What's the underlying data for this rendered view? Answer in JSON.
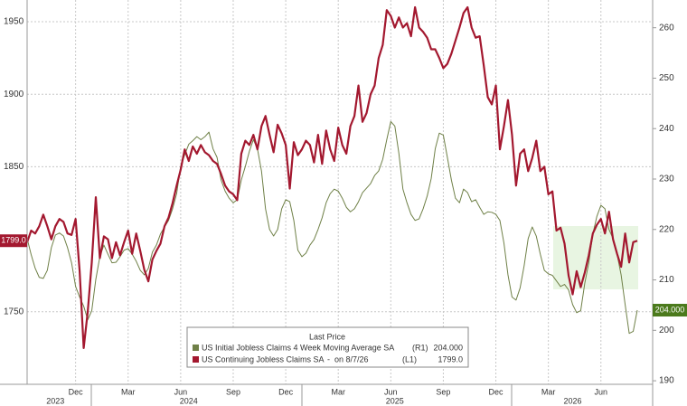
{
  "chart_data": {
    "type": "line",
    "categories": [
      null,
      null,
      null,
      null,
      null,
      null,
      null,
      null,
      null,
      null,
      null,
      null,
      "Dec",
      null,
      null,
      null,
      null,
      null,
      null,
      null,
      null,
      null,
      null,
      null,
      null,
      "Mar",
      null,
      null,
      null,
      null,
      null,
      null,
      null,
      null,
      null,
      null,
      null,
      null,
      "Jun",
      null,
      null,
      null,
      null,
      null,
      null,
      null,
      null,
      null,
      null,
      null,
      null,
      "Sep",
      null,
      null,
      null,
      null,
      null,
      null,
      null,
      null,
      null,
      null,
      null,
      null,
      "Dec",
      null,
      null,
      null,
      null,
      null,
      null,
      null,
      null,
      null,
      null,
      null,
      null,
      "Mar",
      null,
      null,
      null,
      null,
      null,
      null,
      null,
      null,
      null,
      null,
      null,
      null,
      "Jun",
      null,
      null,
      null,
      null,
      null,
      null,
      null,
      null,
      null,
      null,
      null,
      null,
      "Sep",
      null,
      null,
      null,
      null,
      null,
      null,
      null,
      null,
      null,
      null,
      null,
      null,
      "Dec",
      null,
      null,
      null,
      null,
      null,
      null,
      null,
      null,
      null,
      null,
      null,
      null,
      "Mar",
      null,
      null,
      null,
      null,
      null,
      null,
      null,
      null,
      null,
      null,
      null,
      null,
      "Jun",
      null,
      null,
      null,
      null,
      null,
      null,
      null,
      null,
      null
    ],
    "category_years": [
      null,
      null,
      null,
      null,
      null,
      null,
      null,
      "2023",
      null,
      null,
      null,
      null,
      null,
      null,
      null,
      null,
      null,
      null,
      null,
      null,
      null,
      null,
      null,
      null,
      null,
      null,
      null,
      null,
      null,
      null,
      null,
      null,
      null,
      null,
      null,
      null,
      null,
      null,
      null,
      null,
      "2024",
      null,
      null,
      null,
      null,
      null,
      null,
      null,
      null,
      null,
      null,
      null,
      null,
      null,
      null,
      null,
      null,
      null,
      null,
      null,
      null,
      null,
      null,
      null,
      null,
      null,
      null,
      null,
      null,
      null,
      null,
      null,
      null,
      null,
      null,
      null,
      null,
      null,
      null,
      null,
      null,
      null,
      null,
      null,
      null,
      null,
      null,
      null,
      null,
      null,
      null,
      "2025",
      null,
      null,
      null,
      null,
      null,
      null,
      null,
      null,
      null,
      null,
      null,
      null,
      null,
      null,
      null,
      null,
      null,
      null,
      null,
      null,
      null,
      null,
      null,
      null,
      null,
      null,
      null,
      null,
      null,
      null,
      null,
      null,
      null,
      null,
      null,
      null,
      null,
      null,
      null,
      null,
      null,
      null,
      null,
      "2026",
      null,
      null,
      null,
      null,
      null,
      null,
      null,
      null,
      null,
      null,
      null,
      null,
      null,
      null,
      null
    ],
    "legend_title": "Last Price",
    "series": [
      {
        "name": "US Initial Jobless Claims 4 Week Moving Average SA",
        "axis": "y2",
        "axis_tag": "(R1)",
        "color": "#6f8047",
        "last_label": "204.000",
        "values": [
          218.2,
          215.0,
          212.3,
          210.5,
          210.3,
          211.9,
          216.4,
          218.9,
          219.3,
          218.7,
          216.4,
          213.4,
          208.7,
          206.6,
          204.8,
          202.1,
          203.9,
          210.1,
          214.6,
          216.9,
          215.1,
          213.4,
          213.5,
          214.6,
          215.9,
          216.2,
          215.1,
          213.7,
          211.9,
          211.0,
          212.3,
          215.5,
          216.9,
          219.1,
          220.5,
          221.8,
          224.1,
          227.1,
          232.5,
          234.8,
          236.9,
          237.6,
          238.4,
          237.8,
          238.4,
          239.3,
          236.0,
          234.3,
          229.8,
          227.6,
          226.2,
          225.3,
          225.9,
          229.8,
          232.5,
          235.5,
          237.8,
          236.0,
          231.6,
          224.1,
          220.0,
          218.7,
          220.0,
          224.1,
          225.9,
          225.5,
          221.8,
          215.9,
          214.6,
          215.3,
          216.9,
          218.0,
          220.0,
          222.3,
          225.3,
          227.1,
          228.0,
          227.6,
          226.2,
          224.4,
          223.5,
          224.1,
          225.5,
          227.3,
          228.2,
          229.1,
          230.7,
          231.6,
          233.9,
          237.8,
          241.4,
          240.5,
          235.1,
          228.0,
          225.3,
          223.0,
          221.8,
          222.1,
          224.1,
          226.6,
          230.1,
          236.0,
          239.1,
          238.7,
          234.3,
          229.8,
          226.2,
          225.3,
          228.0,
          227.3,
          225.5,
          225.9,
          224.4,
          223.0,
          223.5,
          223.4,
          223.0,
          221.8,
          217.3,
          211.0,
          206.6,
          206.0,
          208.4,
          212.8,
          218.2,
          220.5,
          218.7,
          215.1,
          211.9,
          211.2,
          210.9,
          209.8,
          208.7,
          209.1,
          208.0,
          205.1,
          203.5,
          203.9,
          209.3,
          213.4,
          219.1,
          222.6,
          224.8,
          224.1,
          220.0,
          218.2,
          215.1,
          211.0,
          205.1,
          199.4,
          199.8,
          204
        ]
      },
      {
        "name": "US Continuing Jobless Claims SA",
        "note": "-  on 8/7/26",
        "axis_tag": "(L1)",
        "color": "#a3182f",
        "last_label": "1799.0",
        "values": [
          1798,
          1806,
          1804,
          1809,
          1817,
          1809,
          1800,
          1809,
          1814,
          1812,
          1804,
          1803,
          1814,
          1778,
          1725,
          1750,
          1784,
          1829,
          1787,
          1802,
          1800,
          1787,
          1798,
          1789,
          1798,
          1806,
          1790,
          1804,
          1792,
          1779,
          1771,
          1786,
          1792,
          1797,
          1809,
          1815,
          1825,
          1837,
          1848,
          1862,
          1854,
          1864,
          1859,
          1865,
          1860,
          1858,
          1854,
          1852,
          1845,
          1837,
          1833,
          1831,
          1827,
          1859,
          1868,
          1865,
          1872,
          1862,
          1878,
          1885,
          1872,
          1860,
          1879,
          1873,
          1865,
          1835,
          1867,
          1858,
          1862,
          1868,
          1865,
          1853,
          1872,
          1852,
          1875,
          1862,
          1854,
          1877,
          1865,
          1859,
          1878,
          1885,
          1906,
          1881,
          1887,
          1900,
          1906,
          1925,
          1934,
          1958,
          1954,
          1946,
          1953,
          1946,
          1949,
          1940,
          1960,
          1946,
          1943,
          1939,
          1931,
          1931,
          1925,
          1918,
          1921,
          1928,
          1937,
          1946,
          1956,
          1960,
          1946,
          1939,
          1940,
          1920,
          1898,
          1893,
          1906,
          1862,
          1878,
          1896,
          1872,
          1837,
          1859,
          1862,
          1847,
          1856,
          1868,
          1847,
          1850,
          1831,
          1833,
          1806,
          1808,
          1797,
          1775,
          1762,
          1778,
          1767,
          1777,
          1789,
          1804,
          1810,
          1814,
          1804,
          1819,
          1800,
          1790,
          1781,
          1804,
          1784,
          1798,
          1799
        ]
      }
    ],
    "ylim": [
      1700,
      1965
    ],
    "yticks": [
      1750,
      1850,
      1900,
      1950
    ],
    "y2lim": [
      189.3,
      265.5
    ],
    "y2ticks": [
      190,
      200,
      210,
      220,
      230,
      240,
      250,
      260
    ],
    "grid": true
  }
}
